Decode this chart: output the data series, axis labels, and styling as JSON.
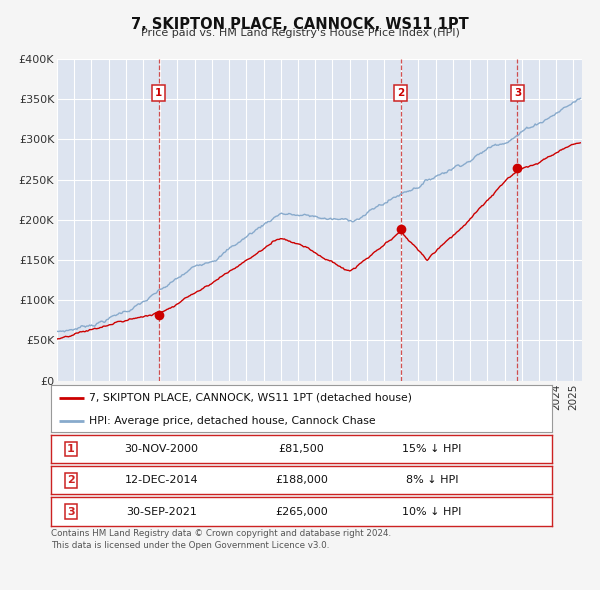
{
  "title": "7, SKIPTON PLACE, CANNOCK, WS11 1PT",
  "subtitle": "Price paid vs. HM Land Registry's House Price Index (HPI)",
  "ylim": [
    0,
    400000
  ],
  "yticks": [
    0,
    50000,
    100000,
    150000,
    200000,
    250000,
    300000,
    350000,
    400000
  ],
  "ytick_labels": [
    "£0",
    "£50K",
    "£100K",
    "£150K",
    "£200K",
    "£250K",
    "£300K",
    "£350K",
    "£400K"
  ],
  "xlim_start": 1995.0,
  "xlim_end": 2025.5,
  "fig_bg_color": "#f5f5f5",
  "plot_bg_color": "#dde4f0",
  "grid_color": "#ffffff",
  "sale_color": "#cc0000",
  "hpi_color": "#88aacc",
  "vline_color": "#cc3333",
  "marker_size": 7,
  "transactions": [
    {
      "label": "1",
      "date_dec": 2000.917,
      "price": 81500
    },
    {
      "label": "2",
      "date_dec": 2014.958,
      "price": 188000
    },
    {
      "label": "3",
      "date_dec": 2021.75,
      "price": 265000
    }
  ],
  "legend_label_sale": "7, SKIPTON PLACE, CANNOCK, WS11 1PT (detached house)",
  "legend_label_hpi": "HPI: Average price, detached house, Cannock Chase",
  "footer1": "Contains HM Land Registry data © Crown copyright and database right 2024.",
  "footer2": "This data is licensed under the Open Government Licence v3.0.",
  "table_rows": [
    {
      "num": "1",
      "date": "30-NOV-2000",
      "price": "£81,500",
      "pct": "15% ↓ HPI"
    },
    {
      "num": "2",
      "date": "12-DEC-2014",
      "price": "£188,000",
      "pct": "8% ↓ HPI"
    },
    {
      "num": "3",
      "date": "30-SEP-2021",
      "price": "£265,000",
      "pct": "10% ↓ HPI"
    }
  ]
}
